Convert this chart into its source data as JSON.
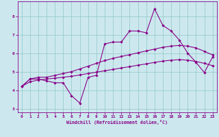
{
  "xlabel": "Windchill (Refroidissement éolien,°C)",
  "bg_color": "#cce8ee",
  "line_color": "#880088",
  "grid_color": "#99cccc",
  "hours": [
    0,
    1,
    2,
    3,
    4,
    5,
    6,
    7,
    8,
    9,
    10,
    11,
    12,
    13,
    14,
    15,
    16,
    17,
    18,
    19,
    20,
    21,
    22,
    23
  ],
  "jagged": [
    4.2,
    4.6,
    4.6,
    4.5,
    4.4,
    4.4,
    3.7,
    3.3,
    4.7,
    4.8,
    6.5,
    6.6,
    6.6,
    7.2,
    7.2,
    7.1,
    8.4,
    7.5,
    7.2,
    6.7,
    6.0,
    5.5,
    4.95,
    5.8
  ],
  "smooth_upper": [
    4.2,
    4.6,
    4.7,
    4.7,
    4.8,
    4.9,
    5.0,
    5.15,
    5.3,
    5.45,
    5.6,
    5.72,
    5.82,
    5.92,
    6.02,
    6.12,
    6.22,
    6.32,
    6.38,
    6.42,
    6.38,
    6.28,
    6.1,
    5.9
  ],
  "smooth_lower": [
    4.2,
    4.45,
    4.55,
    4.6,
    4.65,
    4.7,
    4.75,
    4.82,
    4.9,
    4.97,
    5.05,
    5.12,
    5.2,
    5.27,
    5.35,
    5.42,
    5.5,
    5.57,
    5.62,
    5.65,
    5.62,
    5.55,
    5.45,
    5.32
  ],
  "ylim": [
    2.8,
    8.8
  ],
  "xlim": [
    -0.5,
    23.5
  ],
  "yticks": [
    3,
    4,
    5,
    6,
    7,
    8
  ],
  "xticks": [
    0,
    1,
    2,
    3,
    4,
    5,
    6,
    7,
    8,
    9,
    10,
    11,
    12,
    13,
    14,
    15,
    16,
    17,
    18,
    19,
    20,
    21,
    22,
    23
  ]
}
